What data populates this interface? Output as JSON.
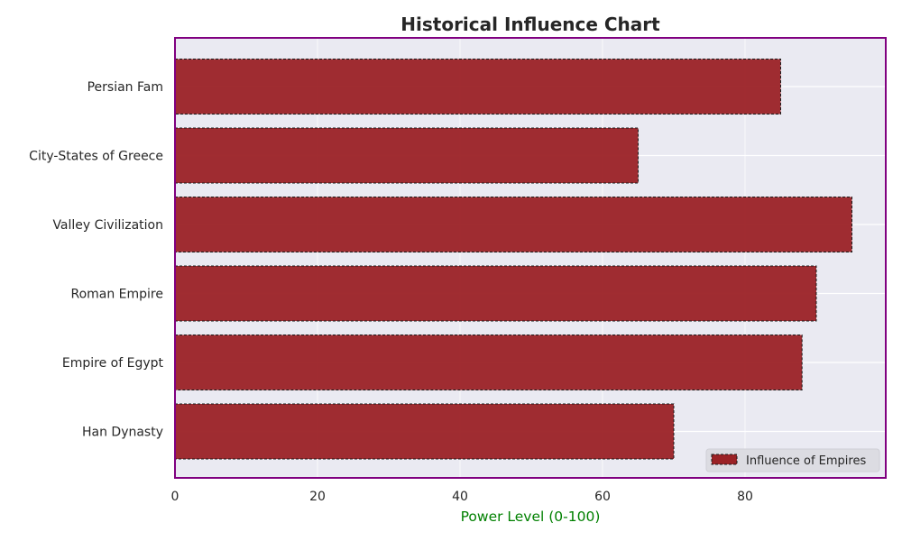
{
  "chart_data": {
    "type": "bar",
    "orientation": "horizontal",
    "title": "Historical Influence Chart",
    "xlabel": "Power Level (0-100)",
    "ylabel": "",
    "categories": [
      "Persian Fam",
      "City-States of Greece",
      "Valley Civilization",
      "Roman Empire",
      "Empire of Egypt",
      "Han Dynasty"
    ],
    "values": [
      85,
      65,
      95,
      90,
      88,
      70
    ],
    "xlim": [
      0,
      99.75
    ],
    "xticks": [
      0,
      20,
      40,
      60,
      80
    ],
    "grid": true,
    "legend": {
      "label": "Influence of Empires",
      "position": "lower-right"
    },
    "colors": {
      "bar": "#9b2226",
      "bar_edge": "#1a1a1a",
      "plot_bg": "#eaeaf2",
      "frame": "#800080",
      "xlabel": "#008000",
      "grid": "#ffffff"
    }
  }
}
